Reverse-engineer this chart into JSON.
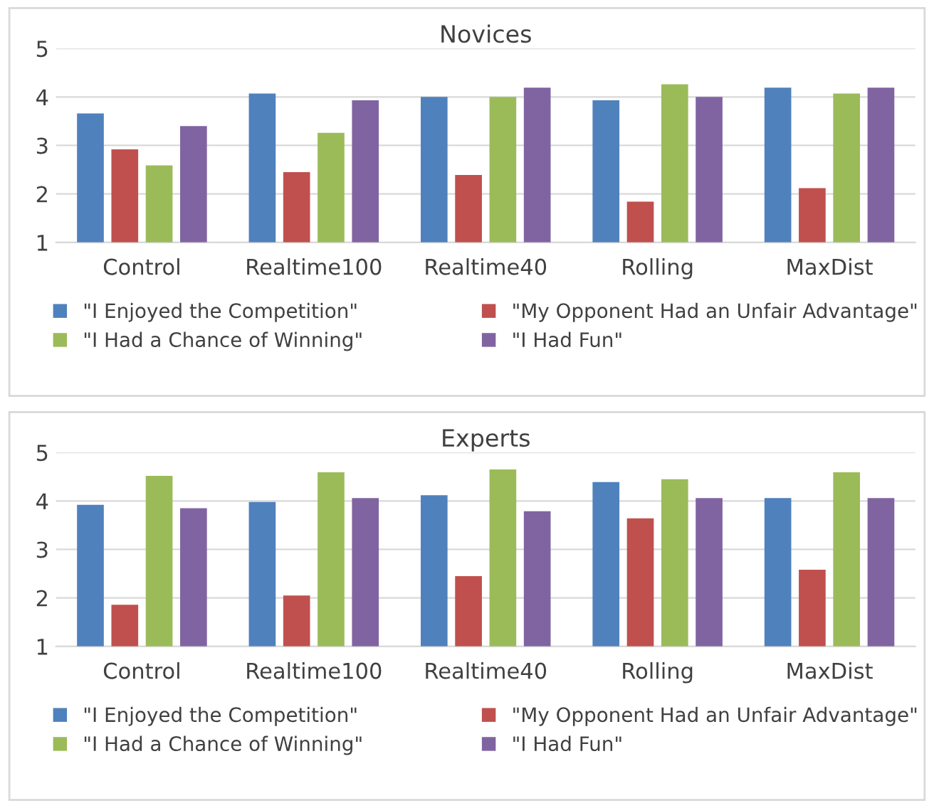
{
  "chart_data": [
    {
      "type": "bar",
      "title": "Novices",
      "categories": [
        "Control",
        "Realtime100",
        "Realtime40",
        "Rolling",
        "MaxDist"
      ],
      "ylim": [
        1,
        5
      ],
      "yticks": [
        1,
        2,
        3,
        4,
        5
      ],
      "grid": "y",
      "legend": "bottom",
      "series": [
        {
          "name": "\"I Enjoyed the Competition\"",
          "color": "#4f81bd",
          "values": [
            3.66,
            4.07,
            4.0,
            3.93,
            4.19
          ]
        },
        {
          "name": "\"My Opponent Had an Unfair Advantage\"",
          "color": "#c0504d",
          "values": [
            2.92,
            2.45,
            2.39,
            1.84,
            2.12
          ]
        },
        {
          "name": "\"I Had a Chance of Winning\"",
          "color": "#9bbb59",
          "values": [
            2.59,
            3.26,
            4.0,
            4.26,
            4.07
          ]
        },
        {
          "name": "\"I Had Fun\"",
          "color": "#8064a2",
          "values": [
            3.4,
            3.93,
            4.19,
            4.0,
            4.19
          ]
        }
      ]
    },
    {
      "type": "bar",
      "title": "Experts",
      "categories": [
        "Control",
        "Realtime100",
        "Realtime40",
        "Rolling",
        "MaxDist"
      ],
      "ylim": [
        1,
        5
      ],
      "yticks": [
        1,
        2,
        3,
        4,
        5
      ],
      "grid": "y",
      "legend": "bottom",
      "series": [
        {
          "name": "\"I Enjoyed the Competition\"",
          "color": "#4f81bd",
          "values": [
            3.92,
            3.98,
            4.12,
            4.39,
            4.06
          ]
        },
        {
          "name": "\"My Opponent Had an Unfair Advantage\"",
          "color": "#c0504d",
          "values": [
            1.86,
            2.05,
            2.45,
            3.64,
            2.58
          ]
        },
        {
          "name": "\"I Had a Chance of Winning\"",
          "color": "#9bbb59",
          "values": [
            4.52,
            4.59,
            4.65,
            4.45,
            4.59
          ]
        },
        {
          "name": "\"I Had Fun\"",
          "color": "#8064a2",
          "values": [
            3.85,
            4.06,
            3.79,
            4.06,
            4.06
          ]
        }
      ]
    }
  ]
}
